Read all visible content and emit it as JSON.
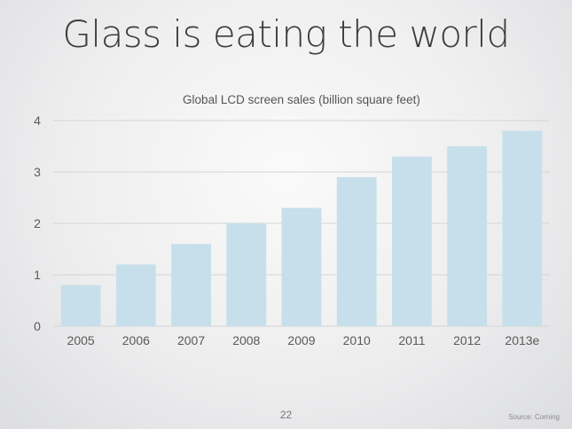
{
  "slide": {
    "title": "Glass is eating the world",
    "page_number": "22",
    "source": "Source: Corning"
  },
  "colors": {
    "bar": "#c7dfea",
    "gridline": "#d4d4d4",
    "text": "#555555"
  },
  "chart_data": {
    "type": "bar",
    "title": "Global LCD screen sales (billion square feet)",
    "categories": [
      "2005",
      "2006",
      "2007",
      "2008",
      "2009",
      "2010",
      "2011",
      "2012",
      "2013e"
    ],
    "values": [
      0.8,
      1.2,
      1.6,
      2.0,
      2.3,
      2.9,
      3.3,
      3.5,
      3.8
    ],
    "yticks": [
      "0",
      "1",
      "2",
      "3",
      "4"
    ],
    "ylim": [
      0,
      4
    ],
    "xlabel": "",
    "ylabel": "",
    "grid": true,
    "legend": "none"
  }
}
